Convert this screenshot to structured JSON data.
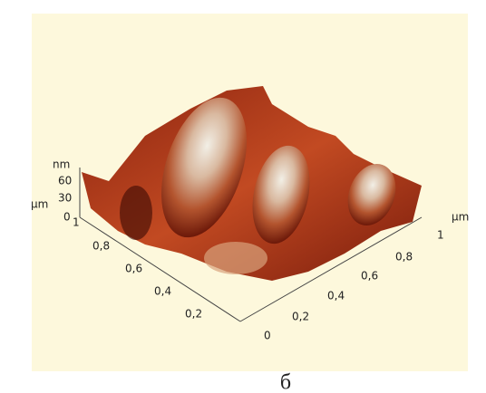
{
  "z_axis": {
    "unit": "nm",
    "ticks": [
      "60",
      "30",
      "0"
    ]
  },
  "left_axis": {
    "unit": "µm",
    "ticks": [
      "1",
      "0,8",
      "0,6",
      "0,4",
      "0,2"
    ]
  },
  "right_axis": {
    "unit": "µm",
    "ticks": [
      "0",
      "0,2",
      "0,4",
      "0,6",
      "0,8",
      "1"
    ]
  },
  "caption": "б"
}
